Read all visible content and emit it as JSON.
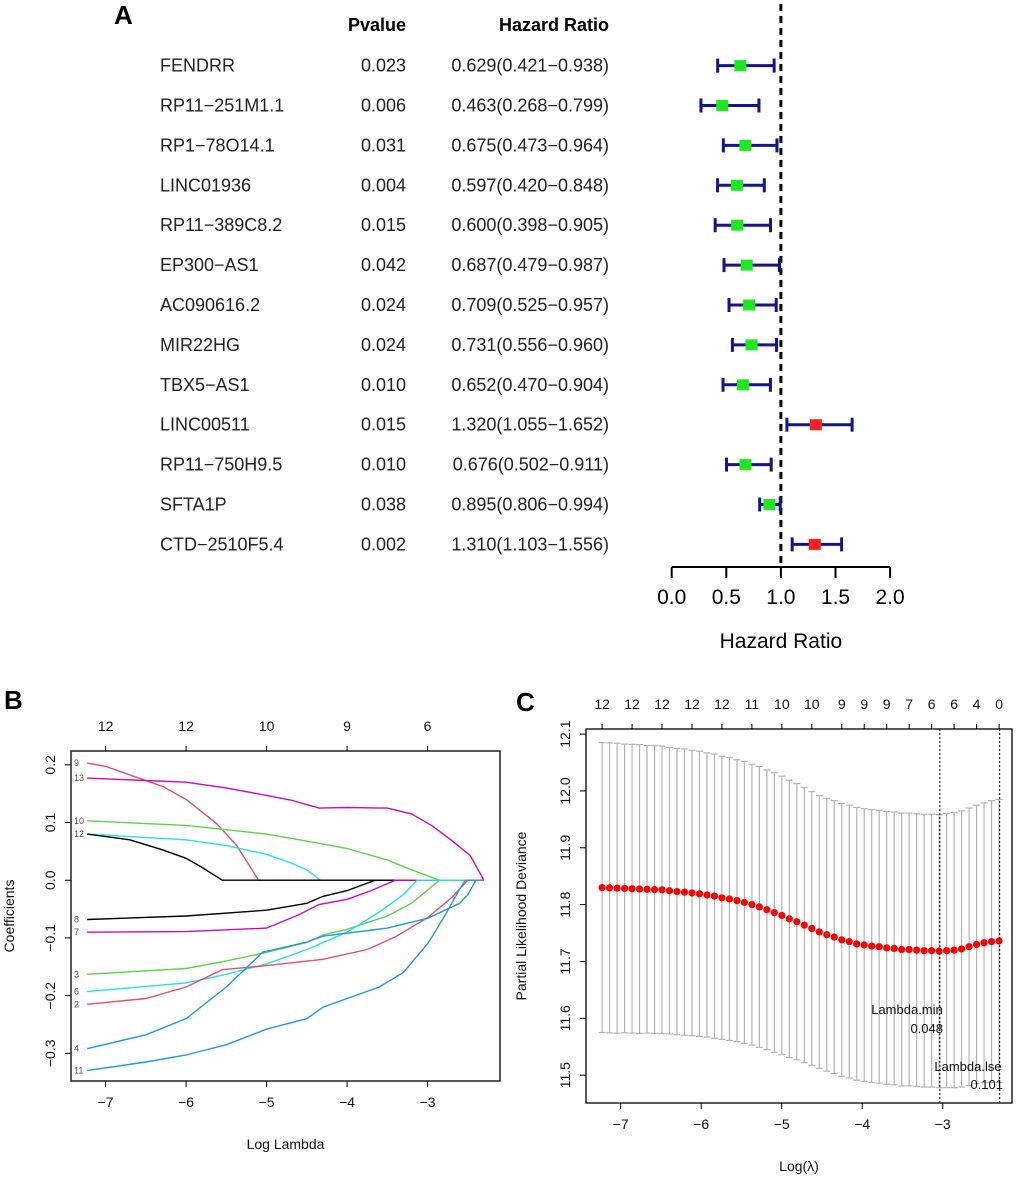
{
  "panel_labels": {
    "a": "A",
    "b": "B",
    "c": "C"
  },
  "chart_data": [
    {
      "type": "forest",
      "panel": "A",
      "headers": {
        "pvalue": "Pvalue",
        "hazard_ratio": "Hazard Ratio"
      },
      "xlabel": "Hazard Ratio",
      "xlim": [
        0,
        2
      ],
      "xticks": [
        0,
        0.5,
        1,
        1.5,
        2
      ],
      "xtick_labels": [
        "0.0",
        "0.5",
        "1.0",
        "1.5",
        "2.0"
      ],
      "reference_line": 1,
      "colors": {
        "protective": "#1fe81f",
        "risk": "#ff1f1f",
        "ci": "#14148a",
        "reference": "#000000"
      },
      "rows": [
        {
          "gene": "FENDRR",
          "pvalue": "0.023",
          "hr_text": "0.629(0.421−0.938)",
          "hr": 0.629,
          "lo": 0.421,
          "hi": 0.938
        },
        {
          "gene": "RP11−251M1.1",
          "pvalue": "0.006",
          "hr_text": "0.463(0.268−0.799)",
          "hr": 0.463,
          "lo": 0.268,
          "hi": 0.799
        },
        {
          "gene": "RP1−78O14.1",
          "pvalue": "0.031",
          "hr_text": "0.675(0.473−0.964)",
          "hr": 0.675,
          "lo": 0.473,
          "hi": 0.964
        },
        {
          "gene": "LINC01936",
          "pvalue": "0.004",
          "hr_text": "0.597(0.420−0.848)",
          "hr": 0.597,
          "lo": 0.42,
          "hi": 0.848
        },
        {
          "gene": "RP11−389C8.2",
          "pvalue": "0.015",
          "hr_text": "0.600(0.398−0.905)",
          "hr": 0.6,
          "lo": 0.398,
          "hi": 0.905
        },
        {
          "gene": "EP300−AS1",
          "pvalue": "0.042",
          "hr_text": "0.687(0.479−0.987)",
          "hr": 0.687,
          "lo": 0.479,
          "hi": 0.987
        },
        {
          "gene": "AC090616.2",
          "pvalue": "0.024",
          "hr_text": "0.709(0.525−0.957)",
          "hr": 0.709,
          "lo": 0.525,
          "hi": 0.957
        },
        {
          "gene": "MIR22HG",
          "pvalue": "0.024",
          "hr_text": "0.731(0.556−0.960)",
          "hr": 0.731,
          "lo": 0.556,
          "hi": 0.96
        },
        {
          "gene": "TBX5−AS1",
          "pvalue": "0.010",
          "hr_text": "0.652(0.470−0.904)",
          "hr": 0.652,
          "lo": 0.47,
          "hi": 0.904
        },
        {
          "gene": "LINC00511",
          "pvalue": "0.015",
          "hr_text": "1.320(1.055−1.652)",
          "hr": 1.32,
          "lo": 1.055,
          "hi": 1.652
        },
        {
          "gene": "RP11−750H9.5",
          "pvalue": "0.010",
          "hr_text": "0.676(0.502−0.911)",
          "hr": 0.676,
          "lo": 0.502,
          "hi": 0.911
        },
        {
          "gene": "SFTA1P",
          "pvalue": "0.038",
          "hr_text": "0.895(0.806−0.994)",
          "hr": 0.895,
          "lo": 0.806,
          "hi": 0.994
        },
        {
          "gene": "CTD−2510F5.4",
          "pvalue": "0.002",
          "hr_text": "1.310(1.103−1.556)",
          "hr": 1.31,
          "lo": 1.103,
          "hi": 1.556
        }
      ]
    },
    {
      "type": "line",
      "panel": "B",
      "xlabel": "Log Lambda",
      "ylabel": "Coefficients",
      "xlim": [
        -7.43,
        -2.1
      ],
      "ylim": [
        -0.348,
        0.224
      ],
      "xticks": [
        -7,
        -6,
        -5,
        -4,
        -3
      ],
      "xtick_labels": [
        "−7",
        "−6",
        "−5",
        "−4",
        "−3"
      ],
      "yticks": [
        -0.3,
        -0.2,
        -0.1,
        0,
        0.1,
        0.2
      ],
      "ytick_labels": [
        "−0.3",
        "−0.2",
        "−0.1",
        "0.0",
        "0.1",
        "0.2"
      ],
      "top_axis": {
        "positions": [
          -7,
          -6,
          -5,
          -4,
          -3
        ],
        "labels": [
          "12",
          "12",
          "10",
          "9",
          "6"
        ]
      },
      "grid": false,
      "series": [
        {
          "label": "9",
          "color": "#DF536B",
          "points": [
            [
              -7.23,
              0.203
            ],
            [
              -6.99,
              0.197
            ],
            [
              -6.28,
              0.162
            ],
            [
              -5.99,
              0.139
            ],
            [
              -5.62,
              0.098
            ],
            [
              -5.37,
              0.06
            ],
            [
              -5.1,
              0
            ],
            [
              -2.3,
              0
            ]
          ]
        },
        {
          "label": "13",
          "color": "#CD0BBC",
          "points": [
            [
              -7.23,
              0.177
            ],
            [
              -6,
              0.17
            ],
            [
              -5.5,
              0.16
            ],
            [
              -5,
              0.147
            ],
            [
              -4.7,
              0.139
            ],
            [
              -4.35,
              0.125
            ],
            [
              -4,
              0.126
            ],
            [
              -3.5,
              0.125
            ],
            [
              -3.2,
              0.115
            ],
            [
              -2.95,
              0.095
            ],
            [
              -2.7,
              0.069
            ],
            [
              -2.47,
              0.043
            ],
            [
              -2.3,
              0
            ]
          ]
        },
        {
          "label": "10",
          "color": "#61D04F",
          "points": [
            [
              -7.23,
              0.103
            ],
            [
              -6,
              0.095
            ],
            [
              -5,
              0.08
            ],
            [
              -4.3,
              0.063
            ],
            [
              -4,
              0.055
            ],
            [
              -3.5,
              0.035
            ],
            [
              -3.2,
              0.018
            ],
            [
              -2.85,
              0
            ],
            [
              -2.3,
              0
            ]
          ]
        },
        {
          "label": "12",
          "color": "#28E2E5",
          "points": [
            [
              -7.23,
              0.08
            ],
            [
              -6,
              0.07
            ],
            [
              -5.5,
              0.06
            ],
            [
              -5,
              0.045
            ],
            [
              -4.7,
              0.03
            ],
            [
              -4.5,
              0.018
            ],
            [
              -4.33,
              0
            ],
            [
              -2.3,
              0
            ]
          ]
        },
        {
          "label": "",
          "color": "#000000",
          "points": [
            [
              -7.23,
              0.08
            ],
            [
              -6.7,
              0.07
            ],
            [
              -6.3,
              0.053
            ],
            [
              -6,
              0.038
            ],
            [
              -5.8,
              0.022
            ],
            [
              -5.55,
              0
            ],
            [
              -2.3,
              0
            ]
          ]
        },
        {
          "label": "8",
          "color": "#000000",
          "points": [
            [
              -7.23,
              -0.068
            ],
            [
              -6,
              -0.062
            ],
            [
              -5,
              -0.052
            ],
            [
              -4.5,
              -0.04
            ],
            [
              -4.3,
              -0.028
            ],
            [
              -4,
              -0.018
            ],
            [
              -3.65,
              0
            ],
            [
              -2.3,
              0
            ]
          ]
        },
        {
          "label": "7",
          "color": "#CD0BBC",
          "points": [
            [
              -7.23,
              -0.09
            ],
            [
              -6,
              -0.089
            ],
            [
              -5,
              -0.083
            ],
            [
              -4.6,
              -0.06
            ],
            [
              -4.35,
              -0.042
            ],
            [
              -4,
              -0.033
            ],
            [
              -3.7,
              -0.018
            ],
            [
              -3.4,
              0
            ],
            [
              -2.3,
              0
            ]
          ]
        },
        {
          "label": "3",
          "color": "#61D04F",
          "points": [
            [
              -7.23,
              -0.163
            ],
            [
              -6,
              -0.153
            ],
            [
              -5.5,
              -0.14
            ],
            [
              -5,
              -0.125
            ],
            [
              -4.5,
              -0.108
            ],
            [
              -4.3,
              -0.095
            ],
            [
              -4,
              -0.085
            ],
            [
              -3.5,
              -0.062
            ],
            [
              -3.2,
              -0.04
            ],
            [
              -2.85,
              0
            ],
            [
              -2.3,
              0
            ]
          ]
        },
        {
          "label": "6",
          "color": "#28E2E5",
          "points": [
            [
              -7.23,
              -0.193
            ],
            [
              -6,
              -0.178
            ],
            [
              -5.5,
              -0.163
            ],
            [
              -5,
              -0.145
            ],
            [
              -4.5,
              -0.12
            ],
            [
              -4,
              -0.09
            ],
            [
              -3.6,
              -0.055
            ],
            [
              -3.3,
              -0.025
            ],
            [
              -3.13,
              0
            ],
            [
              -2.3,
              0
            ]
          ]
        },
        {
          "label": "2",
          "color": "#DF536B",
          "points": [
            [
              -7.23,
              -0.215
            ],
            [
              -6.5,
              -0.205
            ],
            [
              -6,
              -0.185
            ],
            [
              -5.55,
              -0.155
            ],
            [
              -5,
              -0.148
            ],
            [
              -4.3,
              -0.137
            ],
            [
              -3.75,
              -0.12
            ],
            [
              -3.4,
              -0.098
            ],
            [
              -3,
              -0.065
            ],
            [
              -2.7,
              -0.03
            ],
            [
              -2.5,
              0
            ],
            [
              -2.3,
              0
            ]
          ]
        },
        {
          "label": "4",
          "color": "#2297E6",
          "points": [
            [
              -7.23,
              -0.292
            ],
            [
              -6.5,
              -0.268
            ],
            [
              -6,
              -0.24
            ],
            [
              -5.5,
              -0.185
            ],
            [
              -5.05,
              -0.125
            ],
            [
              -4.5,
              -0.107
            ],
            [
              -4.3,
              -0.097
            ],
            [
              -3.5,
              -0.083
            ],
            [
              -3,
              -0.066
            ],
            [
              -2.6,
              -0.04
            ],
            [
              -2.5,
              -0.025
            ],
            [
              -2.4,
              0
            ],
            [
              -2.3,
              0
            ]
          ]
        },
        {
          "label": "11",
          "color": "#2297E6",
          "points": [
            [
              -7.23,
              -0.33
            ],
            [
              -6.5,
              -0.315
            ],
            [
              -6,
              -0.303
            ],
            [
              -5.5,
              -0.285
            ],
            [
              -5,
              -0.258
            ],
            [
              -4.5,
              -0.24
            ],
            [
              -4.3,
              -0.22
            ],
            [
              -4,
              -0.205
            ],
            [
              -3.6,
              -0.185
            ],
            [
              -3.3,
              -0.16
            ],
            [
              -3,
              -0.11
            ],
            [
              -2.8,
              -0.065
            ],
            [
              -2.6,
              -0.015
            ],
            [
              -2.53,
              0
            ],
            [
              -2.3,
              0
            ]
          ]
        }
      ]
    },
    {
      "type": "scatter",
      "panel": "C",
      "xlabel": "Log(λ)",
      "ylabel": "Partial Likelihood Deviance",
      "xlim": [
        -7.43,
        -2.14
      ],
      "ylim": [
        11.451,
        12.109
      ],
      "xticks": [
        -7,
        -6,
        -5,
        -4,
        -3
      ],
      "xtick_labels": [
        "−7",
        "−6",
        "−5",
        "−4",
        "−3"
      ],
      "yticks": [
        11.5,
        11.6,
        11.7,
        11.8,
        11.9,
        12.0,
        12.1
      ],
      "ytick_labels": [
        "11.5",
        "11.6",
        "11.7",
        "11.8",
        "11.9",
        "12.0",
        "12.1"
      ],
      "top_axis": {
        "positions": [
          -7.23,
          -6.858,
          -6.486,
          -6.114,
          -5.742,
          -5.37,
          -4.998,
          -4.626,
          -4.254,
          -3.975,
          -3.696,
          -3.417,
          -3.138,
          -2.859,
          -2.58,
          -2.3
        ],
        "labels": [
          "12",
          "12",
          "12",
          "12",
          "12",
          "11",
          "10",
          "10",
          "9",
          "9",
          "9",
          "7",
          "6",
          "6",
          "4",
          "0"
        ]
      },
      "point_color": "#ff0000",
      "errorbar_color": "#b3b3b3",
      "x_start": -7.23,
      "x_step": 0.093,
      "mean": [
        11.83,
        11.8295,
        11.829,
        11.8285,
        11.828,
        11.8275,
        11.827,
        11.8265,
        11.826,
        11.8245,
        11.823,
        11.822,
        11.8205,
        11.819,
        11.817,
        11.815,
        11.812,
        11.81,
        11.807,
        11.804,
        11.8,
        11.796,
        11.791,
        11.786,
        11.781,
        11.775,
        11.77,
        11.764,
        11.758,
        11.752,
        11.747,
        11.743,
        11.738,
        11.735,
        11.731,
        11.729,
        11.727,
        11.726,
        11.724,
        11.723,
        11.721,
        11.721,
        11.72,
        11.719,
        11.719,
        11.718,
        11.719,
        11.72,
        11.722,
        11.726,
        11.73,
        11.733,
        11.735,
        11.736
      ],
      "se": [
        0.255,
        0.255,
        0.255,
        0.254,
        0.254,
        0.254,
        0.253,
        0.253,
        0.253,
        0.252,
        0.252,
        0.252,
        0.251,
        0.251,
        0.25,
        0.25,
        0.249,
        0.249,
        0.248,
        0.248,
        0.247,
        0.247,
        0.246,
        0.246,
        0.245,
        0.244,
        0.243,
        0.242,
        0.241,
        0.24,
        0.24,
        0.24,
        0.24,
        0.24,
        0.24,
        0.24,
        0.24,
        0.24,
        0.24,
        0.24,
        0.24,
        0.24,
        0.24,
        0.24,
        0.24,
        0.24,
        0.241,
        0.242,
        0.243,
        0.244,
        0.245,
        0.246,
        0.248,
        0.249
      ],
      "lambda_min": {
        "label": "Lambda.min",
        "value": "0.048",
        "log_lambda": -3.036
      },
      "lambda_1se": {
        "label": "Lambda.lse",
        "value": "0.101",
        "log_lambda": -2.293
      }
    }
  ]
}
